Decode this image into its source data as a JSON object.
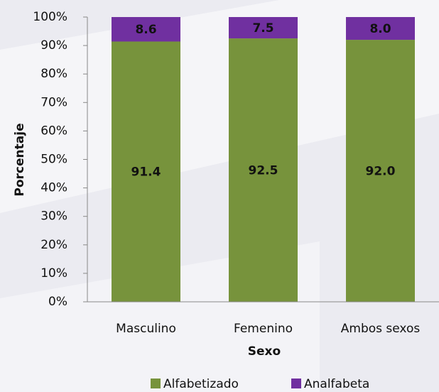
{
  "chart_data": {
    "type": "stacked_bar",
    "categories": [
      "Masculino",
      "Femenino",
      "Ambos sexos"
    ],
    "series": [
      {
        "name": "Alfabetizado",
        "color": "#77933c",
        "values": [
          91.4,
          92.5,
          92.0
        ],
        "value_labels": [
          "91.4",
          "92.5",
          "92.0"
        ]
      },
      {
        "name": "Analfabeta",
        "color": "#7030a0",
        "values": [
          8.6,
          7.5,
          8.0
        ],
        "value_labels": [
          "8.6",
          "7.5",
          "8.0"
        ]
      }
    ],
    "xlabel": "Sexo",
    "ylabel": "Porcentaje",
    "ylim": [
      0,
      100
    ],
    "yticks": [
      {
        "value": 0,
        "label": "0%"
      },
      {
        "value": 10,
        "label": "10%"
      },
      {
        "value": 20,
        "label": "20%"
      },
      {
        "value": 30,
        "label": "30%"
      },
      {
        "value": 40,
        "label": "40%"
      },
      {
        "value": 50,
        "label": "50%"
      },
      {
        "value": 60,
        "label": "60%"
      },
      {
        "value": 70,
        "label": "70%"
      },
      {
        "value": 80,
        "label": "80%"
      },
      {
        "value": 90,
        "label": "90%"
      },
      {
        "value": 100,
        "label": "100%"
      }
    ],
    "legend": "bottom"
  }
}
